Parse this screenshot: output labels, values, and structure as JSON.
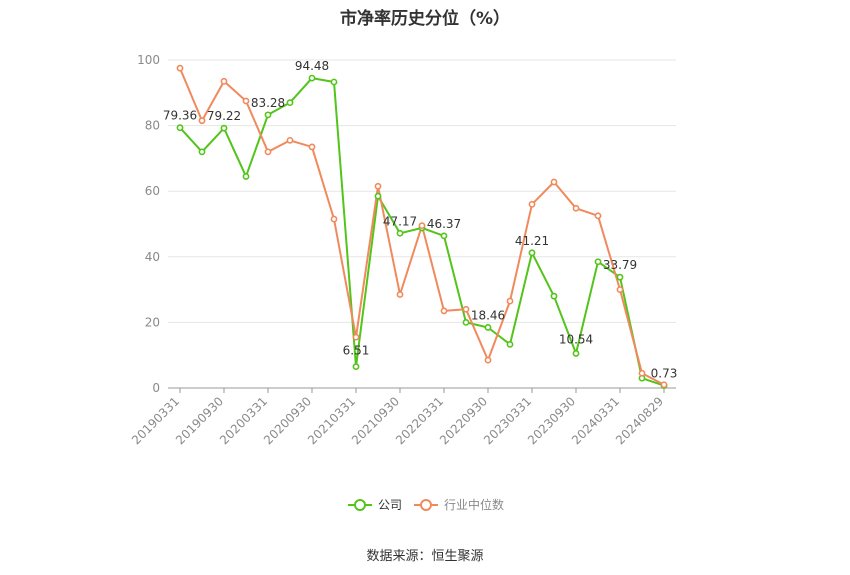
{
  "title": "市净率历史分位（%）",
  "source": "数据来源：恒生聚源",
  "chart_data": {
    "type": "line",
    "title": "市净率历史分位（%）",
    "xlabel": "",
    "ylabel": "",
    "ylim": [
      0,
      100
    ],
    "yticks": [
      0,
      20,
      40,
      60,
      80,
      100
    ],
    "grid": true,
    "legend_position": "bottom",
    "x": [
      "20190331",
      "20190630",
      "20190930",
      "20191231",
      "20200331",
      "20200630",
      "20200930",
      "20201231",
      "20210331",
      "20210630",
      "20210930",
      "20211231",
      "20220331",
      "20220630",
      "20220930",
      "20221231",
      "20230331",
      "20230630",
      "20230930",
      "20231231",
      "20240331",
      "20240630",
      "20240829"
    ],
    "xtick_labels": [
      "20190331",
      "20190930",
      "20200331",
      "20200930",
      "20210331",
      "20210930",
      "20220331",
      "20220930",
      "20230331",
      "20230930",
      "20240331",
      "20240829"
    ],
    "series": [
      {
        "name": "公司",
        "color": "#52c41a",
        "values": [
          79.36,
          72.0,
          79.22,
          64.5,
          83.28,
          87.0,
          94.48,
          93.3,
          6.51,
          58.5,
          47.17,
          48.8,
          46.37,
          20.0,
          18.46,
          13.3,
          41.21,
          28.0,
          10.54,
          38.5,
          33.79,
          3.0,
          0.73
        ]
      },
      {
        "name": "行业中位数",
        "color": "#f08a5d",
        "values": [
          97.5,
          81.5,
          93.5,
          87.5,
          72.0,
          75.5,
          73.5,
          51.5,
          15.5,
          61.5,
          28.5,
          49.5,
          23.5,
          24.0,
          8.5,
          26.5,
          56.0,
          62.8,
          54.8,
          52.5,
          30.0,
          4.5,
          1.0
        ]
      }
    ],
    "data_labels": [
      {
        "series": 0,
        "index": 0,
        "text": "79.36"
      },
      {
        "series": 0,
        "index": 2,
        "text": "79.22"
      },
      {
        "series": 0,
        "index": 4,
        "text": "83.28"
      },
      {
        "series": 0,
        "index": 6,
        "text": "94.48"
      },
      {
        "series": 0,
        "index": 8,
        "text": "6.51"
      },
      {
        "series": 0,
        "index": 10,
        "text": "47.17"
      },
      {
        "series": 0,
        "index": 12,
        "text": "46.37"
      },
      {
        "series": 0,
        "index": 14,
        "text": "18.46"
      },
      {
        "series": 0,
        "index": 16,
        "text": "41.21"
      },
      {
        "series": 0,
        "index": 18,
        "text": "10.54"
      },
      {
        "series": 0,
        "index": 20,
        "text": "33.79"
      },
      {
        "series": 0,
        "index": 22,
        "text": "0.73"
      }
    ]
  }
}
